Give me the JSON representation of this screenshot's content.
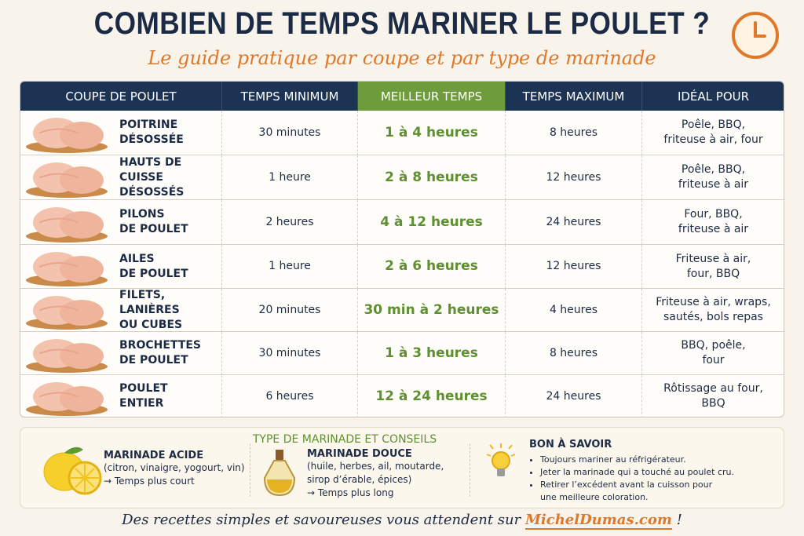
{
  "header": {
    "title": "COMBIEN DE TEMPS MARINER LE POULET ?",
    "subtitle": "Le guide pratique par coupe et par type de marinade"
  },
  "table": {
    "columns": [
      "COUPE DE POULET",
      "TEMPS MINIMUM",
      "MEILLEUR TEMPS",
      "TEMPS MAXIMUM",
      "IDÉAL POUR"
    ],
    "rows": [
      [
        "POITRINE\nDÉSOSSÉE",
        "30 minutes",
        "1 à 4 heures",
        "8 heures",
        "Poêle, BBQ,\nfriteuse à air, four"
      ],
      [
        "HAUTS DE CUISSE\nDÉSOSSÉS",
        "1 heure",
        "2 à 8 heures",
        "12 heures",
        "Poêle, BBQ,\nfriteuse à air"
      ],
      [
        "PILONS\nDE POULET",
        "2 heures",
        "4 à 12 heures",
        "24 heures",
        "Four, BBQ,\nfriteuse à air"
      ],
      [
        "AILES\nDE POULET",
        "1 heure",
        "2 à 6 heures",
        "12 heures",
        "Friteuse à air,\nfour, BBQ"
      ],
      [
        "FILETS, LANIÈRES\nOU CUBES",
        "20 minutes",
        "30 min à 2 heures",
        "4 heures",
        "Friteuse à air, wraps,\nsautés, bols repas"
      ],
      [
        "BROCHETTES\nDE POULET",
        "30 minutes",
        "1 à 3 heures",
        "8 heures",
        "BBQ, poêle,\nfour"
      ],
      [
        "POULET\nENTIER",
        "6 heures",
        "12 à 24 heures",
        "24 heures",
        "Rôtissage au four,\nBBQ"
      ]
    ]
  },
  "tips": {
    "title": "TYPE DE MARINADE ET CONSEILS",
    "items": [
      {
        "title": "MARINADE ACIDE",
        "lines": [
          "(citron, vinaigre, yogourt, vin)",
          "→ Temps plus court"
        ]
      },
      {
        "title": "MARINADE DOUCE",
        "lines": [
          "(huile, herbes, ail, moutarde,",
          "sirop d’érable, épices)",
          "→ Temps plus long"
        ]
      }
    ],
    "good_to_know": {
      "title": "BON À SAVOIR",
      "bullets": [
        "Toujours mariner au réfrigérateur.",
        "Jeter la marinade qui a touché au poulet cru.",
        "Retirer l’excédent avant la cuisson pour\nune meilleure coloration."
      ]
    }
  },
  "footer": {
    "text": "Des recettes simples et savoureuses vous attendent sur",
    "link": "MichelDumas.com",
    "end": "!"
  }
}
